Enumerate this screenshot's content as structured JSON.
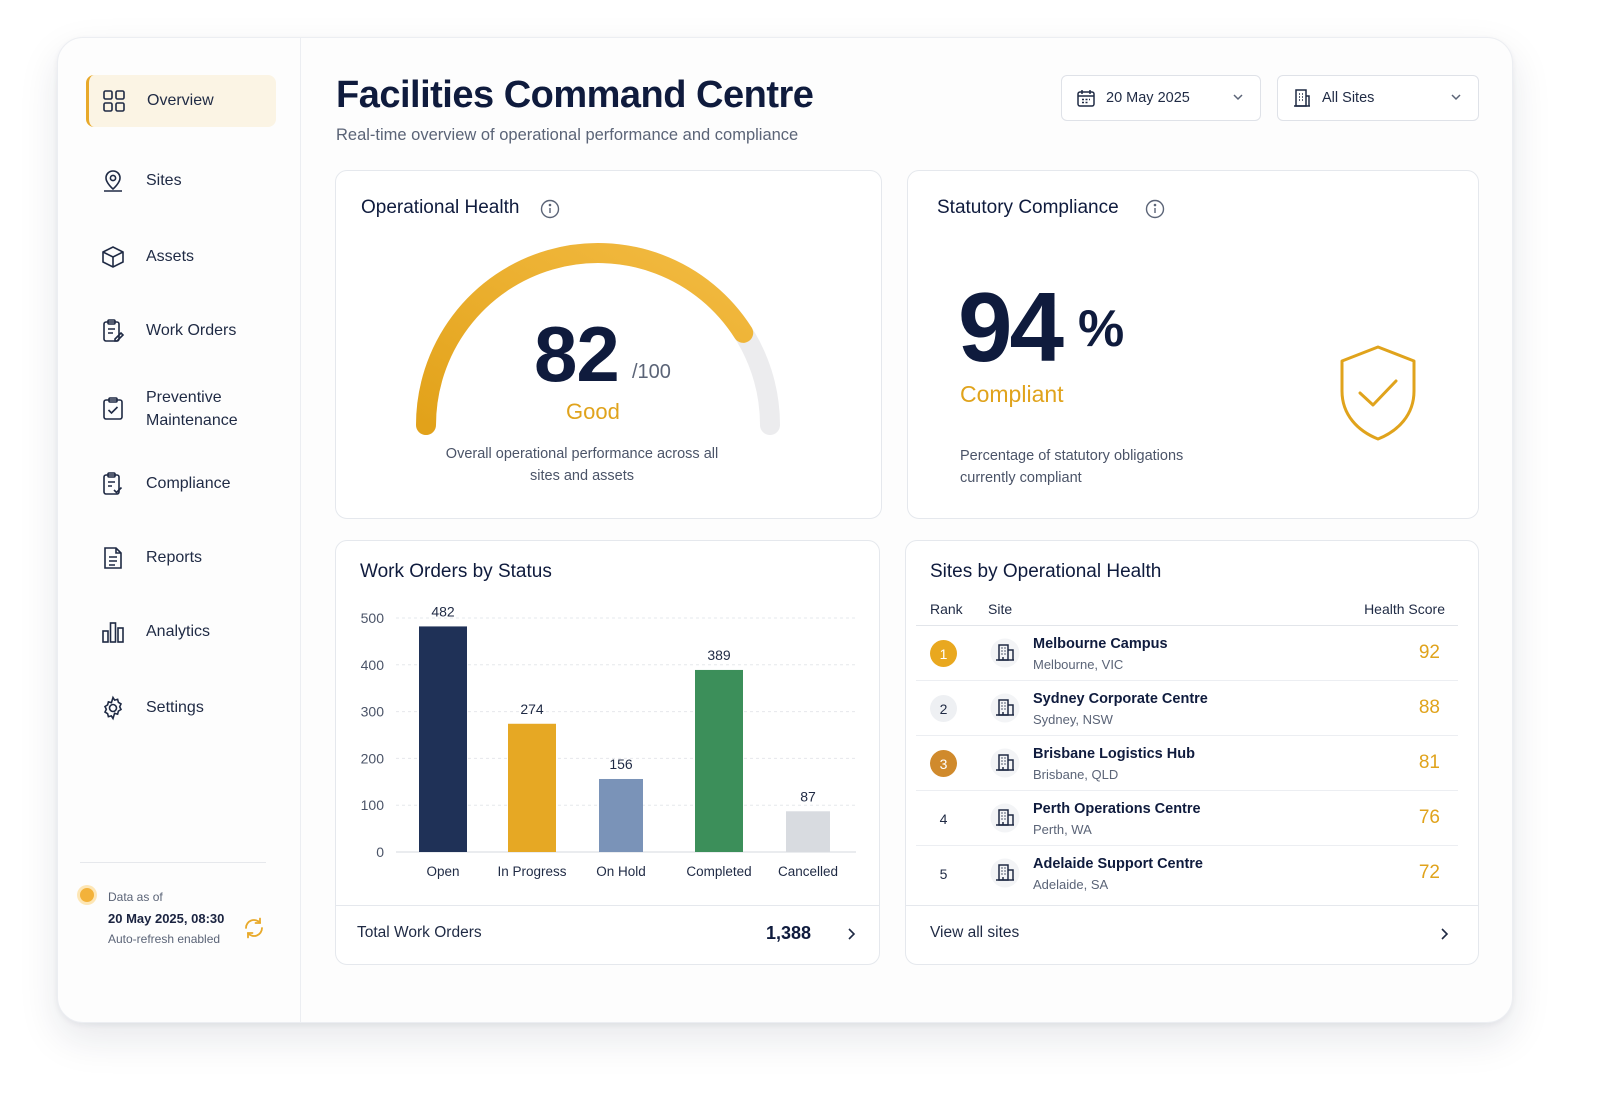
{
  "sidebar": {
    "items": [
      {
        "label": "Overview",
        "icon": "grid-icon"
      },
      {
        "label": "Sites",
        "icon": "map-pin-icon"
      },
      {
        "label": "Assets",
        "icon": "box-icon"
      },
      {
        "label": "Work Orders",
        "icon": "clipboard-edit-icon"
      },
      {
        "label": "Preventive",
        "label2": "Maintenance",
        "icon": "clipboard-check-icon"
      },
      {
        "label": "Compliance",
        "icon": "document-check-icon"
      },
      {
        "label": "Reports",
        "icon": "document-icon"
      },
      {
        "label": "Analytics",
        "icon": "bar-chart-icon"
      },
      {
        "label": "Settings",
        "icon": "gear-icon"
      }
    ],
    "data_asof": {
      "label": "Data as of",
      "datetime": "20 May 2025, 08:30",
      "refresh": "Auto-refresh enabled"
    }
  },
  "header": {
    "title": "Facilities Command Centre",
    "subtitle": "Real-time overview of operational performance and compliance",
    "date_select": "20 May 2025",
    "site_select": "All Sites"
  },
  "operational_health": {
    "title": "Operational Health",
    "value": "82",
    "max": "/100",
    "score_fraction": 0.82,
    "status": "Good",
    "description": "Overall operational performance across all sites and assets"
  },
  "statutory_compliance": {
    "title": "Statutory Compliance",
    "value": "94",
    "unit": "%",
    "status": "Compliant",
    "description": "Percentage of statutory obligations currently compliant"
  },
  "work_orders": {
    "title": "Work Orders by Status",
    "footer_label": "Total Work Orders",
    "footer_value": "1,388"
  },
  "chart_data": {
    "type": "bar",
    "title": "Work Orders by Status",
    "categories": [
      "Open",
      "In Progress",
      "On Hold",
      "Completed",
      "Cancelled"
    ],
    "values": [
      482,
      274,
      156,
      389,
      87
    ],
    "colors": [
      "#1f3157",
      "#e6a824",
      "#7a93b8",
      "#3c8f5a",
      "#d8dbe0"
    ],
    "yticks": [
      0,
      100,
      200,
      300,
      400,
      500
    ],
    "ylim": [
      0,
      500
    ],
    "grid": true
  },
  "sites": {
    "title": "Sites by Operational Health",
    "columns": [
      "Rank",
      "Site",
      "Health Score"
    ],
    "rows": [
      {
        "rank": "1",
        "name": "Melbourne Campus",
        "location": "Melbourne, VIC",
        "score": "92"
      },
      {
        "rank": "2",
        "name": "Sydney Corporate Centre",
        "location": "Sydney, NSW",
        "score": "88"
      },
      {
        "rank": "3",
        "name": "Brisbane Logistics Hub",
        "location": "Brisbane, QLD",
        "score": "81"
      },
      {
        "rank": "4",
        "name": "Perth Operations Centre",
        "location": "Perth, WA",
        "score": "76"
      },
      {
        "rank": "5",
        "name": "Adelaide Support Centre",
        "location": "Adelaide, SA",
        "score": "72"
      }
    ],
    "footer_label": "View all sites"
  },
  "colors": {
    "accent": "#e0a31c",
    "navy": "#0f1b3d",
    "rank_gold": "#e9a81f",
    "rank_silver": "#eef0f3",
    "rank_bronze": "#d08a2c"
  }
}
